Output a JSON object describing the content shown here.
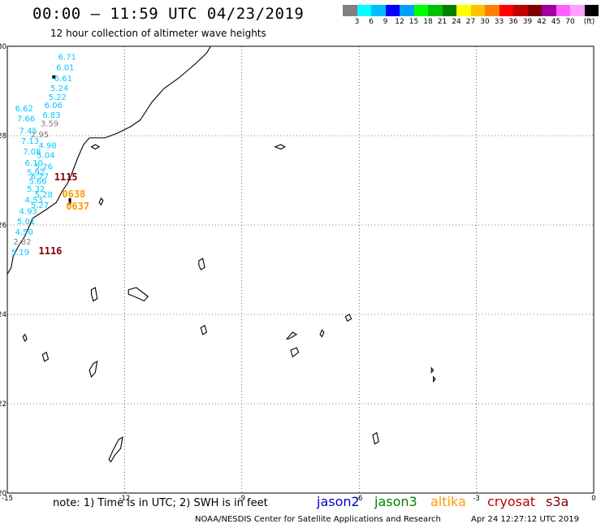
{
  "header": {
    "title": "00:00 – 11:59 UTC 04/23/2019",
    "subtitle": "12 hour collection of altimeter wave heights"
  },
  "legend": {
    "colors": [
      "#808080",
      "#00ffff",
      "#00bfff",
      "#0000ff",
      "#00a0ff",
      "#00ff00",
      "#00c000",
      "#008000",
      "#ffff00",
      "#ffc000",
      "#ff8000",
      "#ff0000",
      "#c00000",
      "#800000",
      "#a000a0",
      "#ff60ff",
      "#ffa0ff",
      "#000000"
    ],
    "labels": [
      "3",
      "6",
      "9",
      "12",
      "15",
      "18",
      "21",
      "24",
      "27",
      "30",
      "33",
      "36",
      "39",
      "42",
      "45",
      "70",
      "(ft)"
    ]
  },
  "map": {
    "lat_ticks": [
      "30",
      "28",
      "26",
      "24",
      "22",
      "20"
    ],
    "lon_ticks": [
      "-15",
      "-12",
      "-9",
      "-6",
      "-3",
      "0"
    ],
    "wave_labels": [
      {
        "text": "6.71",
        "lon": -13.7,
        "lat": 29.7,
        "color": "#00c8ff"
      },
      {
        "text": "6.01",
        "lon": -13.75,
        "lat": 29.46,
        "color": "#00c8ff"
      },
      {
        "text": "6.61",
        "lon": -13.8,
        "lat": 29.22,
        "color": "#00c8ff"
      },
      {
        "text": "5.24",
        "lon": -13.9,
        "lat": 29.0,
        "color": "#00c8ff"
      },
      {
        "text": "5.22",
        "lon": -13.95,
        "lat": 28.8,
        "color": "#00c8ff"
      },
      {
        "text": "6.62",
        "lon": -14.8,
        "lat": 28.55,
        "color": "#00c8ff"
      },
      {
        "text": "6.06",
        "lon": -14.05,
        "lat": 28.62,
        "color": "#00c8ff"
      },
      {
        "text": "7.66",
        "lon": -14.75,
        "lat": 28.32,
        "color": "#00c8ff"
      },
      {
        "text": "6.83",
        "lon": -14.1,
        "lat": 28.4,
        "color": "#00c8ff"
      },
      {
        "text": "7.45",
        "lon": -14.7,
        "lat": 28.05,
        "color": "#00c8ff"
      },
      {
        "text": "3.59",
        "lon": -14.15,
        "lat": 28.21,
        "color": "#808080"
      },
      {
        "text": "2.95",
        "lon": -14.4,
        "lat": 27.96,
        "color": "#808080"
      },
      {
        "text": "7.13",
        "lon": -14.65,
        "lat": 27.82,
        "color": "#00c8ff"
      },
      {
        "text": "4.98",
        "lon": -14.2,
        "lat": 27.72,
        "color": "#00c8ff"
      },
      {
        "text": "7.08",
        "lon": -14.6,
        "lat": 27.58,
        "color": "#00c8ff"
      },
      {
        "text": "5.04",
        "lon": -14.25,
        "lat": 27.5,
        "color": "#00c8ff"
      },
      {
        "text": "6.10",
        "lon": -14.55,
        "lat": 27.33,
        "color": "#00c8ff"
      },
      {
        "text": "5.26",
        "lon": -14.3,
        "lat": 27.25,
        "color": "#00c8ff"
      },
      {
        "text": "5.92",
        "lon": -14.5,
        "lat": 27.12,
        "color": "#00c8ff"
      },
      {
        "text": "6.27",
        "lon": -14.4,
        "lat": 27.03,
        "color": "#00c8ff"
      },
      {
        "text": "5.66",
        "lon": -14.45,
        "lat": 26.92,
        "color": "#00c8ff"
      },
      {
        "text": "5.32",
        "lon": -14.5,
        "lat": 26.75,
        "color": "#00c8ff"
      },
      {
        "text": "5.28",
        "lon": -14.3,
        "lat": 26.62,
        "color": "#00c8ff"
      },
      {
        "text": "4.53",
        "lon": -14.55,
        "lat": 26.5,
        "color": "#00c8ff"
      },
      {
        "text": "5.27",
        "lon": -14.4,
        "lat": 26.38,
        "color": "#00c8ff"
      },
      {
        "text": "4.93",
        "lon": -14.7,
        "lat": 26.25,
        "color": "#00c8ff"
      },
      {
        "text": "5.01",
        "lon": -14.75,
        "lat": 26.02,
        "color": "#00c8ff"
      },
      {
        "text": "4.50",
        "lon": -14.8,
        "lat": 25.78,
        "color": "#00c8ff"
      },
      {
        "text": "2.82",
        "lon": -14.85,
        "lat": 25.56,
        "color": "#808080"
      },
      {
        "text": "5.19",
        "lon": -14.9,
        "lat": 25.33,
        "color": "#00c8ff"
      }
    ],
    "time_labels": [
      {
        "text": "1115",
        "lon": -13.8,
        "lat": 27.0,
        "color": "#800000"
      },
      {
        "text": "0638",
        "lon": -13.6,
        "lat": 26.62,
        "color": "#ff9900"
      },
      {
        "text": "0637",
        "lon": -13.5,
        "lat": 26.35,
        "color": "#ff9900"
      },
      {
        "text": "1116",
        "lon": -14.2,
        "lat": 25.35,
        "color": "#800000"
      }
    ]
  },
  "footer": {
    "note": "note: 1) Time is in UTC; 2) SWH is in feet",
    "satellites": [
      {
        "name": "jason2",
        "color": "#0000c8"
      },
      {
        "name": "jason3",
        "color": "#008000"
      },
      {
        "name": "altika",
        "color": "#ff9900"
      },
      {
        "name": "cryosat",
        "color": "#c00000"
      },
      {
        "name": "s3a",
        "color": "#800000"
      }
    ],
    "credit": "NOAA/NESDIS Center for Satellite Applications and Research",
    "timestamp": "Apr 24 12:27:12 UTC 2019"
  }
}
